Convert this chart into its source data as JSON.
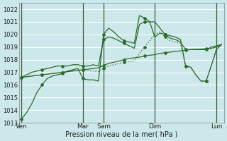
{
  "xlabel": "Pression niveau de la mer( hPa )",
  "bg_color": "#cde8ea",
  "grid_color": "#ffffff",
  "line_color": "#2d6a2d",
  "ylim": [
    1013,
    1022.5
  ],
  "ytick_vals": [
    1013,
    1014,
    1015,
    1016,
    1017,
    1018,
    1019,
    1020,
    1021,
    1022
  ],
  "xtick_labels": [
    "Ven",
    "Mar",
    "Sam",
    "Dim",
    "Lun"
  ],
  "xtick_positions": [
    0,
    12,
    16,
    26,
    38
  ],
  "vline_positions": [
    0,
    12,
    16,
    26,
    38
  ],
  "n_points": 40,
  "series": [
    [
      1013.3,
      1013.8,
      1014.5,
      1015.4,
      1016.0,
      1016.5,
      1016.7,
      1016.8,
      1016.9,
      1017.1,
      1017.2,
      1017.3,
      1016.5,
      1016.4,
      1016.4,
      1016.3,
      1020.0,
      1020.5,
      1020.2,
      1019.8,
      1019.5,
      1019.4,
      1019.3,
      1021.5,
      1021.3,
      1021.0,
      1019.8,
      1020.1,
      1020.0,
      1019.9,
      1019.8,
      1019.6,
      1017.5,
      1017.4,
      1016.8,
      1016.3,
      1016.3,
      1017.5,
      1018.8,
      1019.2
    ],
    [
      1016.6,
      1016.8,
      1017.0,
      1017.1,
      1017.2,
      1017.3,
      1017.4,
      1017.5,
      1017.5,
      1017.5,
      1017.6,
      1017.6,
      1017.5,
      1017.5,
      1017.6,
      1017.5,
      1019.6,
      1019.8,
      1019.7,
      1019.5,
      1019.3,
      1019.1,
      1018.9,
      1020.8,
      1021.0,
      1021.0,
      1021.0,
      1020.5,
      1020.0,
      1019.7,
      1019.6,
      1019.4,
      1018.8,
      1018.8,
      1018.8,
      1018.8,
      1018.8,
      1019.0,
      1019.1,
      1019.2
    ],
    [
      1016.6,
      1016.65,
      1016.7,
      1016.75,
      1016.8,
      1016.85,
      1016.9,
      1016.95,
      1017.0,
      1017.05,
      1017.1,
      1017.15,
      1017.2,
      1017.25,
      1017.3,
      1017.35,
      1017.55,
      1017.7,
      1017.8,
      1017.9,
      1018.0,
      1018.1,
      1018.15,
      1018.2,
      1018.3,
      1018.35,
      1018.4,
      1018.5,
      1018.55,
      1018.6,
      1018.65,
      1018.7,
      1018.75,
      1018.8,
      1018.82,
      1018.84,
      1018.86,
      1018.9,
      1019.0,
      1019.2
    ],
    [
      1016.6,
      1016.65,
      1016.7,
      1016.75,
      1016.8,
      1016.85,
      1016.9,
      1016.95,
      1017.0,
      1017.05,
      1017.1,
      1017.15,
      1017.2,
      1017.15,
      1017.1,
      1017.05,
      1017.3,
      1017.5,
      1017.6,
      1017.7,
      1017.8,
      1017.85,
      1017.9,
      1018.5,
      1019.0,
      1019.5,
      1020.0,
      1020.2,
      1019.8,
      1019.5,
      1019.4,
      1019.3,
      1017.5,
      1017.4,
      1016.8,
      1016.3,
      1016.3,
      1017.5,
      1018.8,
      1019.2
    ]
  ],
  "line_styles": [
    "-",
    "-",
    "-",
    "dotted"
  ],
  "marker": "D",
  "marker_size": 2.0,
  "marker_every": [
    4,
    4,
    4,
    4
  ]
}
